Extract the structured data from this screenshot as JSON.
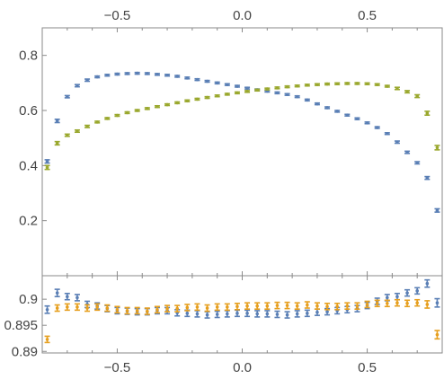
{
  "chart_data": [
    {
      "type": "scatter",
      "panel": "top",
      "title": "",
      "xlabel": "",
      "ylabel": "",
      "xlim": [
        -0.8,
        0.8
      ],
      "ylim": [
        0.0,
        0.9
      ],
      "x_ticks": [
        -0.5,
        0.0,
        0.5
      ],
      "x_tick_labels": [
        "−0.5",
        "0.0",
        "0.5"
      ],
      "x_tick_labels_position": "top",
      "y_ticks": [
        0.2,
        0.4,
        0.6,
        0.8
      ],
      "y_tick_labels": [
        "0.2",
        "0.4",
        "0.6",
        "0.8"
      ],
      "error_bars": true,
      "grid": false,
      "legend": "none",
      "series": [
        {
          "color": "#5a7fb5",
          "x": [
            -0.78,
            -0.74,
            -0.7,
            -0.66,
            -0.62,
            -0.58,
            -0.54,
            -0.5,
            -0.46,
            -0.42,
            -0.38,
            -0.34,
            -0.3,
            -0.26,
            -0.22,
            -0.18,
            -0.14,
            -0.1,
            -0.06,
            -0.02,
            0.02,
            0.06,
            0.1,
            0.14,
            0.18,
            0.22,
            0.26,
            0.3,
            0.34,
            0.38,
            0.42,
            0.46,
            0.5,
            0.54,
            0.58,
            0.62,
            0.66,
            0.7,
            0.74,
            0.78
          ],
          "y": [
            0.415,
            0.562,
            0.65,
            0.69,
            0.71,
            0.722,
            0.728,
            0.732,
            0.734,
            0.735,
            0.734,
            0.731,
            0.728,
            0.724,
            0.718,
            0.712,
            0.706,
            0.7,
            0.694,
            0.688,
            0.681,
            0.675,
            0.67,
            0.664,
            0.658,
            0.65,
            0.638,
            0.624,
            0.61,
            0.597,
            0.583,
            0.57,
            0.555,
            0.538,
            0.516,
            0.485,
            0.448,
            0.41,
            0.355,
            0.237
          ],
          "yerr": [
            0.006,
            0.006,
            0.004,
            0.004,
            0.004,
            0.003,
            0.003,
            0.003,
            0.003,
            0.003,
            0.003,
            0.003,
            0.003,
            0.003,
            0.003,
            0.003,
            0.003,
            0.003,
            0.003,
            0.003,
            0.003,
            0.003,
            0.003,
            0.003,
            0.003,
            0.003,
            0.003,
            0.003,
            0.003,
            0.003,
            0.003,
            0.003,
            0.003,
            0.003,
            0.003,
            0.004,
            0.004,
            0.004,
            0.005,
            0.006
          ]
        },
        {
          "color": "#9aa82e",
          "x": [
            -0.78,
            -0.74,
            -0.7,
            -0.66,
            -0.62,
            -0.58,
            -0.54,
            -0.5,
            -0.46,
            -0.42,
            -0.38,
            -0.34,
            -0.3,
            -0.26,
            -0.22,
            -0.18,
            -0.14,
            -0.1,
            -0.06,
            -0.02,
            0.02,
            0.06,
            0.1,
            0.14,
            0.18,
            0.22,
            0.26,
            0.3,
            0.34,
            0.38,
            0.42,
            0.46,
            0.5,
            0.54,
            0.58,
            0.62,
            0.66,
            0.7,
            0.74,
            0.78
          ],
          "y": [
            0.393,
            0.481,
            0.51,
            0.525,
            0.542,
            0.558,
            0.571,
            0.582,
            0.592,
            0.6,
            0.607,
            0.614,
            0.621,
            0.628,
            0.635,
            0.641,
            0.647,
            0.653,
            0.659,
            0.664,
            0.669,
            0.674,
            0.678,
            0.682,
            0.686,
            0.689,
            0.692,
            0.694,
            0.696,
            0.697,
            0.698,
            0.698,
            0.697,
            0.694,
            0.688,
            0.68,
            0.668,
            0.652,
            0.59,
            0.465
          ],
          "yerr": [
            0.007,
            0.006,
            0.004,
            0.004,
            0.004,
            0.003,
            0.003,
            0.003,
            0.003,
            0.003,
            0.003,
            0.003,
            0.003,
            0.003,
            0.003,
            0.003,
            0.003,
            0.003,
            0.003,
            0.003,
            0.003,
            0.003,
            0.003,
            0.003,
            0.003,
            0.003,
            0.003,
            0.003,
            0.003,
            0.003,
            0.003,
            0.003,
            0.003,
            0.003,
            0.003,
            0.004,
            0.004,
            0.005,
            0.007,
            0.008
          ]
        }
      ]
    },
    {
      "type": "scatter",
      "panel": "bottom",
      "title": "",
      "xlabel": "",
      "ylabel": "",
      "xlim": [
        -0.8,
        0.8
      ],
      "ylim": [
        0.8897,
        0.9045
      ],
      "x_ticks": [
        -0.5,
        0.0,
        0.5
      ],
      "x_tick_labels": [
        "−0.5",
        "0.0",
        "0.5"
      ],
      "x_tick_labels_position": "bottom",
      "y_ticks": [
        0.89,
        0.895,
        0.9
      ],
      "y_tick_labels": [
        "0.89",
        "0.895",
        "0.9"
      ],
      "error_bars": true,
      "grid": false,
      "legend": "none",
      "series": [
        {
          "color": "#5a7fb5",
          "x": [
            -0.78,
            -0.74,
            -0.7,
            -0.66,
            -0.62,
            -0.58,
            -0.54,
            -0.5,
            -0.46,
            -0.42,
            -0.38,
            -0.34,
            -0.3,
            -0.26,
            -0.22,
            -0.18,
            -0.14,
            -0.1,
            -0.06,
            -0.02,
            0.02,
            0.06,
            0.1,
            0.14,
            0.18,
            0.22,
            0.26,
            0.3,
            0.34,
            0.38,
            0.42,
            0.46,
            0.5,
            0.54,
            0.58,
            0.62,
            0.66,
            0.7,
            0.74,
            0.78
          ],
          "y": [
            0.898,
            0.9012,
            0.9005,
            0.9003,
            0.899,
            0.8987,
            0.8982,
            0.8978,
            0.8977,
            0.8976,
            0.8976,
            0.8978,
            0.8978,
            0.8974,
            0.8973,
            0.8972,
            0.897,
            0.8971,
            0.8972,
            0.8973,
            0.8973,
            0.8972,
            0.8972,
            0.8971,
            0.897,
            0.8972,
            0.8973,
            0.8975,
            0.8976,
            0.8978,
            0.898,
            0.8982,
            0.8988,
            0.8996,
            0.9003,
            0.9005,
            0.9012,
            0.9016,
            0.903,
            0.8993
          ],
          "yerr": [
            0.0007,
            0.0007,
            0.0006,
            0.0006,
            0.0006,
            0.0006,
            0.0006,
            0.0006,
            0.0006,
            0.0006,
            0.0006,
            0.0006,
            0.0006,
            0.0006,
            0.0006,
            0.0006,
            0.0006,
            0.0006,
            0.0006,
            0.0006,
            0.0006,
            0.0006,
            0.0006,
            0.0006,
            0.0006,
            0.0006,
            0.0006,
            0.0006,
            0.0006,
            0.0006,
            0.0006,
            0.0006,
            0.0006,
            0.0006,
            0.0006,
            0.0006,
            0.0006,
            0.0006,
            0.0007,
            0.0008
          ]
        },
        {
          "color": "#e69f1e",
          "x": [
            -0.78,
            -0.74,
            -0.7,
            -0.66,
            -0.62,
            -0.58,
            -0.54,
            -0.5,
            -0.46,
            -0.42,
            -0.38,
            -0.34,
            -0.3,
            -0.26,
            -0.22,
            -0.18,
            -0.14,
            -0.1,
            -0.06,
            -0.02,
            0.02,
            0.06,
            0.1,
            0.14,
            0.18,
            0.22,
            0.26,
            0.3,
            0.34,
            0.38,
            0.42,
            0.46,
            0.5,
            0.54,
            0.58,
            0.62,
            0.66,
            0.7,
            0.74,
            0.78
          ],
          "y": [
            0.8923,
            0.8983,
            0.8985,
            0.8985,
            0.8983,
            0.8985,
            0.8983,
            0.898,
            0.8978,
            0.8978,
            0.8977,
            0.898,
            0.8982,
            0.8982,
            0.8984,
            0.8985,
            0.8983,
            0.8985,
            0.8985,
            0.8986,
            0.8987,
            0.8987,
            0.8987,
            0.8988,
            0.8988,
            0.8987,
            0.8989,
            0.8987,
            0.8986,
            0.8986,
            0.8987,
            0.8987,
            0.899,
            0.8992,
            0.8992,
            0.8993,
            0.8992,
            0.8993,
            0.899,
            0.8932
          ],
          "yerr": [
            0.0006,
            0.0006,
            0.0006,
            0.0006,
            0.0006,
            0.0006,
            0.0006,
            0.0006,
            0.0006,
            0.0006,
            0.0006,
            0.0006,
            0.0006,
            0.0006,
            0.0006,
            0.0006,
            0.0006,
            0.0006,
            0.0006,
            0.0006,
            0.0006,
            0.0006,
            0.0006,
            0.0006,
            0.0006,
            0.0006,
            0.0006,
            0.0006,
            0.0006,
            0.0006,
            0.0006,
            0.0006,
            0.0006,
            0.0006,
            0.0006,
            0.0006,
            0.0006,
            0.0006,
            0.0007,
            0.0008
          ]
        }
      ]
    }
  ]
}
